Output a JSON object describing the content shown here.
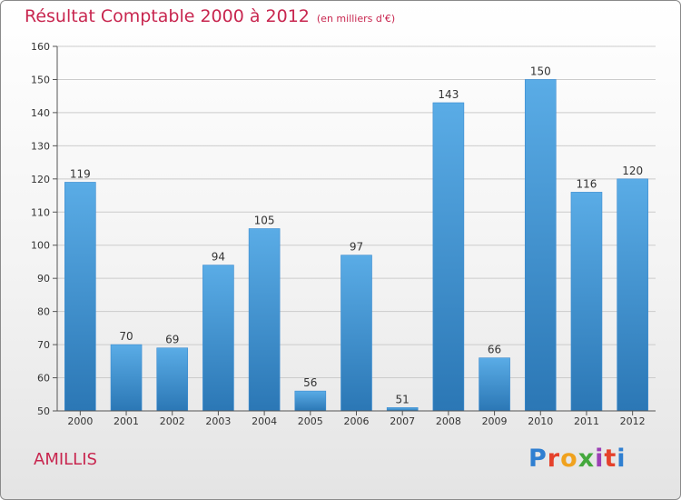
{
  "page": {
    "title": "Résultat Comptable 2000 à 2012",
    "subtitle": "(en milliers d'€)",
    "commune": "AMILLIS",
    "logo": "Proxiti"
  },
  "colors": {
    "title": "#c8264f",
    "bar_top": "#5aace6",
    "bar_bottom": "#2b77b5",
    "axis": "#555555",
    "grid": "#cccccc"
  },
  "chart_data": {
    "type": "bar",
    "title": "Résultat Comptable 2000 à 2012",
    "subtitle": "(en milliers d'€)",
    "xlabel": "",
    "ylabel": "",
    "ylim": [
      50,
      160
    ],
    "yticks": [
      50,
      60,
      70,
      80,
      90,
      100,
      110,
      120,
      130,
      140,
      150,
      160
    ],
    "categories": [
      "2000",
      "2001",
      "2002",
      "2003",
      "2004",
      "2005",
      "2006",
      "2007",
      "2008",
      "2009",
      "2010",
      "2011",
      "2012"
    ],
    "values": [
      119,
      70,
      69,
      94,
      105,
      56,
      97,
      51,
      143,
      66,
      150,
      116,
      120
    ],
    "data_labels": [
      "119",
      "70",
      "69",
      "94",
      "105",
      "56",
      "97",
      "51",
      "143",
      "66",
      "150",
      "116",
      "120"
    ],
    "grid": true,
    "legend": "none"
  }
}
